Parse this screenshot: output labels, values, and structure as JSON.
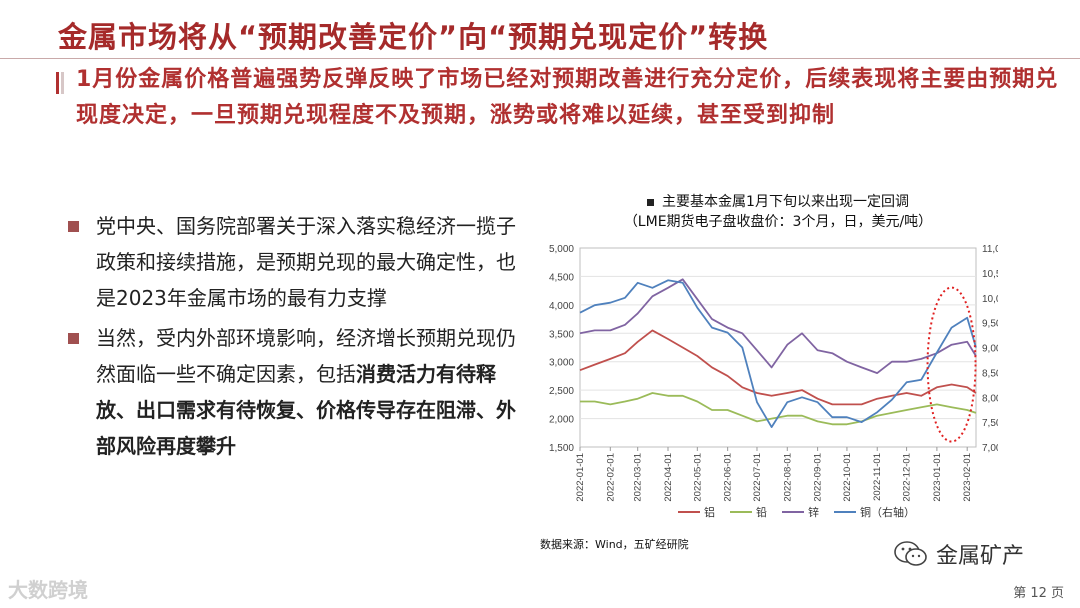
{
  "title": "金属市场将从“预期改善定价”向“预期兑现定价”转换",
  "lead": "1月份金属价格普遍强势反弹反映了市场已经对预期改善进行充分定价，后续表现将主要由预期兑现度决定，一旦预期兑现程度不及预期，涨势或将难以延续，甚至受到抑制",
  "bullets": [
    {
      "text": "党中央、国务院部署关于深入落实稳经济一揽子政策和接续措施，是预期兑现的最大确定性，也是2023年金属市场的最有力支撑",
      "bold": ""
    },
    {
      "text": "当然，受内外部环境影响，经济增长预期兑现仍然面临一些不确定因素，包括",
      "bold": "消费活力有待释放、出口需求有待恢复、价格传导存在阻滞、外部风险再度攀升"
    }
  ],
  "source": "数据来源：Wind，五矿经研院",
  "wechat": "金属矿产",
  "page": "第 12 页",
  "watermark": "大数跨境",
  "colors": {
    "title": "#a52a2a",
    "lead": "#b03030",
    "bullet": "#a05050",
    "lead_bars": [
      "#b03030",
      "#d7c7c7"
    ]
  },
  "chart_data": {
    "type": "line",
    "title_line1": "主要基本金属1月下旬以来出现一定回调",
    "title_line2": "（LME期货电子盘收盘价：3个月，日，美元/吨）",
    "x": [
      "2022-01-01",
      "2022-01-16",
      "2022-02-01",
      "2022-02-16",
      "2022-03-01",
      "2022-03-16",
      "2022-04-01",
      "2022-04-16",
      "2022-05-01",
      "2022-05-16",
      "2022-06-01",
      "2022-06-16",
      "2022-07-01",
      "2022-07-16",
      "2022-08-01",
      "2022-08-16",
      "2022-09-01",
      "2022-09-16",
      "2022-10-01",
      "2022-10-16",
      "2022-11-01",
      "2022-11-16",
      "2022-12-01",
      "2022-12-16",
      "2023-01-01",
      "2023-01-16",
      "2023-02-01",
      "2023-02-10"
    ],
    "x_ticks": [
      "2022-01-01",
      "2022-02-01",
      "2022-03-01",
      "2022-04-01",
      "2022-05-01",
      "2022-06-01",
      "2022-07-01",
      "2022-08-01",
      "2022-09-01",
      "2022-10-01",
      "2022-11-01",
      "2022-12-01",
      "2023-01-01",
      "2023-02-01"
    ],
    "ylim_left": [
      1500,
      5000
    ],
    "yticks_left": [
      "1,500",
      "2,000",
      "2,500",
      "3,000",
      "3,500",
      "4,000",
      "4,500",
      "5,000"
    ],
    "ylim_right": [
      7000,
      11000
    ],
    "yticks_right": [
      "7,000",
      "7,500",
      "8,000",
      "8,500",
      "9,000",
      "9,500",
      "10,000",
      "10,500",
      "11,000"
    ],
    "grid": true,
    "legend_position": "bottom",
    "series": [
      {
        "name": "铝",
        "axis": "left",
        "color": "#c0504d",
        "values": [
          2850,
          2950,
          3050,
          3150,
          3350,
          3550,
          3400,
          3250,
          3100,
          2900,
          2750,
          2550,
          2450,
          2400,
          2450,
          2500,
          2350,
          2250,
          2250,
          2250,
          2350,
          2400,
          2450,
          2400,
          2550,
          2600,
          2550,
          2450
        ]
      },
      {
        "name": "铅",
        "axis": "left",
        "color": "#9bbb59",
        "values": [
          2300,
          2300,
          2250,
          2300,
          2350,
          2450,
          2400,
          2400,
          2300,
          2150,
          2150,
          2050,
          1950,
          2000,
          2050,
          2050,
          1950,
          1900,
          1900,
          1950,
          2050,
          2100,
          2150,
          2200,
          2250,
          2200,
          2150,
          2100
        ]
      },
      {
        "name": "锌",
        "axis": "left",
        "color": "#8064a2",
        "values": [
          3500,
          3550,
          3550,
          3650,
          3850,
          4150,
          4300,
          4450,
          4100,
          3750,
          3600,
          3500,
          3200,
          2900,
          3300,
          3500,
          3200,
          3150,
          3000,
          2900,
          2800,
          3000,
          3000,
          3050,
          3150,
          3300,
          3350,
          3100
        ]
      },
      {
        "name": "铜（右轴）",
        "axis": "right",
        "color": "#4f81bd",
        "values": [
          9700,
          9850,
          9900,
          10000,
          10300,
          10200,
          10350,
          10300,
          9800,
          9400,
          9300,
          9000,
          7900,
          7400,
          7900,
          8000,
          7900,
          7600,
          7600,
          7500,
          7700,
          7950,
          8300,
          8350,
          8900,
          9400,
          9600,
          9000
        ]
      }
    ]
  }
}
